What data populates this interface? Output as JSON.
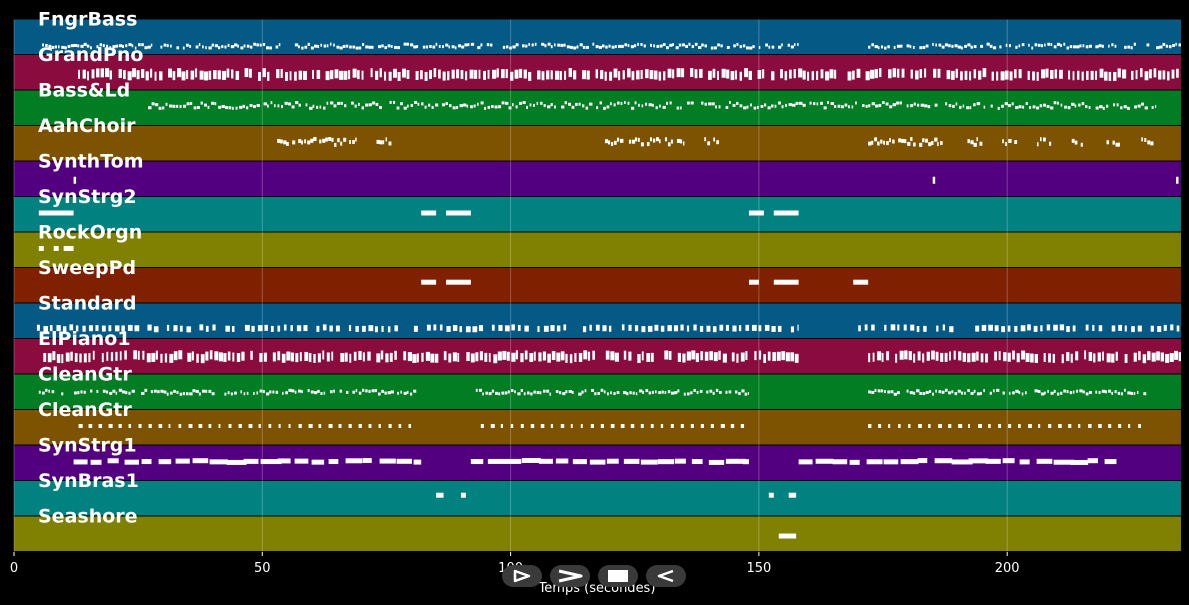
{
  "chart_data": {
    "type": "piano-roll",
    "xlabel": "Temps (secondes)",
    "xlim": [
      0,
      235
    ],
    "x_ticks": [
      0,
      50,
      100,
      150,
      200
    ],
    "grid": true,
    "tracks": [
      {
        "name": "FngrBass",
        "color": "#055985",
        "density": "dense",
        "segments": [
          [
            5,
            158
          ],
          [
            172,
            235
          ]
        ],
        "row": 0.75
      },
      {
        "name": "GrandPno",
        "color": "#8a0c3e",
        "density": "chords",
        "segments": [
          [
            12,
            235
          ]
        ],
        "row": 0.55
      },
      {
        "name": "Bass&Ld",
        "color": "#037d23",
        "density": "sparse",
        "segments": [
          [
            27,
            172
          ],
          [
            172,
            230
          ]
        ],
        "row": 0.42
      },
      {
        "name": "AahChoir",
        "color": "#7d5201",
        "density": "phrases",
        "segments": [
          [
            53,
            69
          ],
          [
            73,
            76
          ],
          [
            119,
            135
          ],
          [
            139,
            142
          ],
          [
            172,
            187
          ],
          [
            192,
            195
          ],
          [
            199,
            202
          ],
          [
            206,
            209
          ],
          [
            213,
            216
          ],
          [
            220,
            223
          ],
          [
            227,
            230
          ]
        ],
        "row": 0.45
      },
      {
        "name": "SynthTom",
        "color": "#530080",
        "density": "dots",
        "segments": [
          [
            12,
            12.5
          ],
          [
            185,
            185.5
          ],
          [
            234,
            234.5
          ]
        ],
        "row": 0.5
      },
      {
        "name": "SynStrg2",
        "color": "#028181",
        "density": "blocks",
        "segments": [
          [
            5,
            12
          ],
          [
            82,
            85
          ],
          [
            87,
            92
          ],
          [
            148,
            151
          ],
          [
            153,
            158
          ]
        ],
        "row": 0.45
      },
      {
        "name": "RockOrgn",
        "color": "#808002",
        "density": "blocks",
        "segments": [
          [
            5,
            6
          ],
          [
            8,
            9
          ],
          [
            10,
            12
          ]
        ],
        "row": 0.45
      },
      {
        "name": "SweepPd",
        "color": "#7f2000",
        "density": "blocks",
        "segments": [
          [
            82,
            85
          ],
          [
            87,
            92
          ],
          [
            148,
            150
          ],
          [
            153,
            158
          ],
          [
            169,
            172
          ]
        ],
        "row": 0.4
      },
      {
        "name": "Standard",
        "color": "#055985",
        "density": "drums",
        "segments": [
          [
            2,
            158
          ],
          [
            170,
            235
          ]
        ],
        "row": 0.7
      },
      {
        "name": "ElPiano1",
        "color": "#8a0c3e",
        "density": "chords",
        "segments": [
          [
            5,
            158
          ],
          [
            172,
            235
          ]
        ],
        "row": 0.5
      },
      {
        "name": "CleanGtr",
        "color": "#037d23",
        "density": "dense",
        "segments": [
          [
            5,
            81
          ],
          [
            93,
            148
          ],
          [
            172,
            228
          ]
        ],
        "row": 0.5
      },
      {
        "name": "CleanGtr",
        "color": "#7d5201",
        "density": "regular",
        "segments": [
          [
            13,
            81
          ],
          [
            94,
            148
          ],
          [
            172,
            227
          ]
        ],
        "row": 0.45
      },
      {
        "name": "SynStrg1",
        "color": "#530080",
        "density": "long",
        "segments": [
          [
            12,
            82
          ],
          [
            92,
            148
          ],
          [
            158,
            222
          ]
        ],
        "row": 0.45
      },
      {
        "name": "SynBras1",
        "color": "#028181",
        "density": "blocks",
        "segments": [
          [
            85,
            86.5
          ],
          [
            90,
            91
          ],
          [
            152,
            153
          ],
          [
            156,
            157.5
          ]
        ],
        "row": 0.4
      },
      {
        "name": "Seashore",
        "color": "#808002",
        "density": "blocks",
        "segments": [
          [
            154,
            157.5
          ]
        ],
        "row": 0.55
      }
    ]
  },
  "controls": [
    {
      "name": "play-forward",
      "icon": "play-outline-icon"
    },
    {
      "name": "fast-forward",
      "icon": "chevron-right-icon"
    },
    {
      "name": "stop",
      "icon": "stop-icon"
    },
    {
      "name": "reverse",
      "icon": "play-reverse-icon"
    }
  ]
}
